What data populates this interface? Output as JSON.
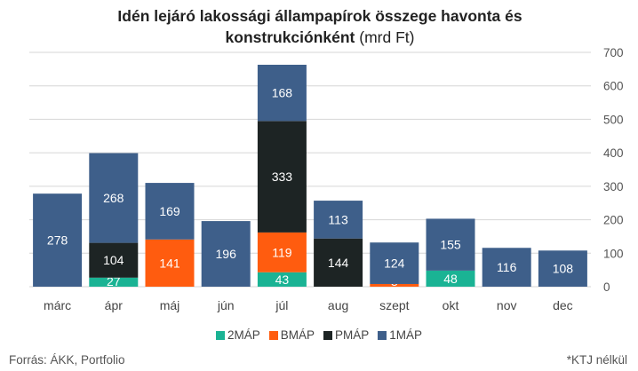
{
  "chart_data": {
    "type": "bar",
    "stacked": true,
    "title_bold": "Idén lejáró lakossági állampapírok összege havonta és konstrukciónként",
    "title_unit": "(mrd Ft)",
    "categories": [
      "márc",
      "ápr",
      "máj",
      "jún",
      "júl",
      "aug",
      "szept",
      "okt",
      "nov",
      "dec"
    ],
    "series": [
      {
        "name": "2MÁP",
        "color": "#1ab394",
        "values": [
          0,
          27,
          0,
          0,
          43,
          0,
          0,
          48,
          0,
          0
        ]
      },
      {
        "name": "BMÁP",
        "color": "#ff5c0f",
        "values": [
          0,
          0,
          141,
          0,
          119,
          0,
          8,
          0,
          0,
          0
        ]
      },
      {
        "name": "PMÁP",
        "color": "#1d2424",
        "values": [
          0,
          104,
          0,
          0,
          333,
          144,
          0,
          0,
          0,
          0
        ]
      },
      {
        "name": "1MÁP",
        "color": "#3e5f8a",
        "values": [
          278,
          268,
          169,
          196,
          168,
          113,
          124,
          155,
          116,
          108
        ]
      }
    ],
    "ylim": [
      0,
      700
    ],
    "yticks": [
      "0",
      "100",
      "200",
      "300",
      "400",
      "500",
      "600",
      "700"
    ],
    "y_axis_position": "right",
    "grid": true,
    "legend_position": "bottom"
  },
  "footer": {
    "source": "Forrás: ÁKK, Portfolio",
    "note": "*KTJ nélkül"
  }
}
